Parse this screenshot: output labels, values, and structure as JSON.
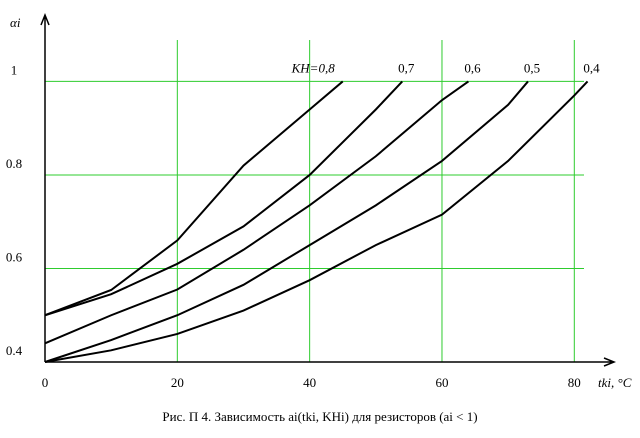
{
  "chart_data": {
    "type": "line",
    "caption": "Рис. П   4. Зависимость ai(tki, KHi) для резисторов (ai < 1)",
    "x_label": "tki, °C",
    "y_label": "αi",
    "xlim": [
      0,
      86
    ],
    "ylim": [
      0.4,
      1.11
    ],
    "xticks": [
      0,
      20,
      40,
      60,
      80
    ],
    "yticks": [
      0.4,
      0.6,
      0.8,
      1
    ],
    "grid": true,
    "grid_color": "#2ecc2e",
    "series": [
      {
        "name": "KH=0,8",
        "color": "#000000",
        "x": [
          0,
          10,
          20,
          30,
          40,
          45
        ],
        "values": [
          0.5,
          0.554,
          0.66,
          0.82,
          0.94,
          1
        ]
      },
      {
        "name": "0,7",
        "color": "#000000",
        "x": [
          0,
          10,
          20,
          30,
          40,
          50,
          54
        ],
        "values": [
          0.5,
          0.545,
          0.61,
          0.69,
          0.8,
          0.94,
          1
        ]
      },
      {
        "name": "0,6",
        "color": "#000000",
        "x": [
          0,
          10,
          20,
          30,
          40,
          50,
          60,
          64
        ],
        "values": [
          0.44,
          0.5,
          0.555,
          0.64,
          0.735,
          0.84,
          0.96,
          1
        ]
      },
      {
        "name": "0,5",
        "color": "#000000",
        "x": [
          0,
          10,
          20,
          30,
          40,
          50,
          60,
          70,
          73
        ],
        "values": [
          0.4,
          0.447,
          0.5,
          0.565,
          0.65,
          0.735,
          0.83,
          0.95,
          1
        ]
      },
      {
        "name": "0,4",
        "color": "#000000",
        "x": [
          0,
          10,
          20,
          30,
          40,
          50,
          60,
          70,
          80,
          82
        ],
        "values": [
          0.4,
          0.425,
          0.46,
          0.51,
          0.575,
          0.65,
          0.715,
          0.83,
          0.97,
          1
        ]
      }
    ]
  }
}
